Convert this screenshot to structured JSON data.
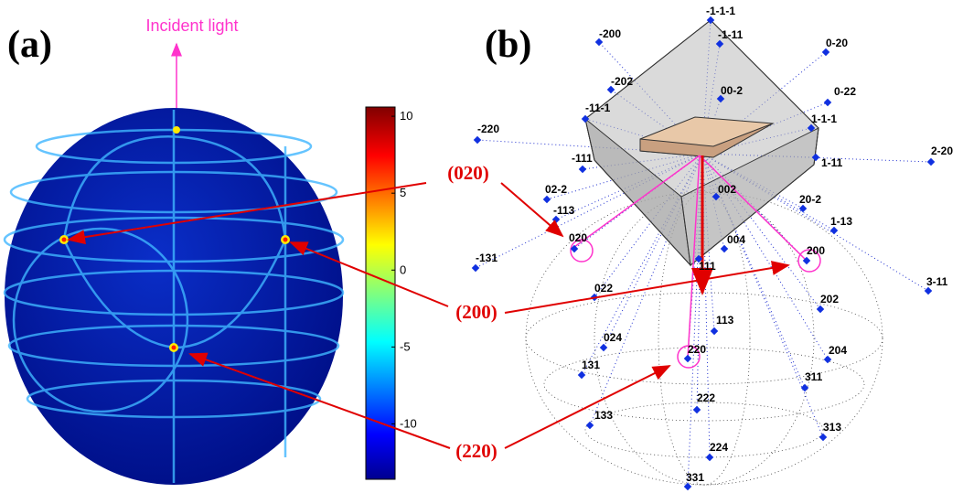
{
  "panel_a": {
    "label": "(a)",
    "incident_label": "Incident light",
    "colorbar": {
      "lim": [
        -13.6,
        10.6
      ],
      "ticks": [
        10,
        5,
        0,
        -5,
        -10
      ]
    }
  },
  "panel_b": {
    "label": "(b)",
    "poles": [
      "-200",
      "-1-1-1",
      "-1-11",
      "0-20",
      "-202",
      "00-2",
      "0-22",
      "-11-1",
      "-220",
      "1-1-1",
      "2-20",
      "-111",
      "1-11",
      "02-2",
      "002",
      "-113",
      "20-2",
      "1-13",
      "004",
      "020",
      "-131",
      "200",
      "111",
      "3-11",
      "022",
      "202",
      "113",
      "024",
      "204",
      "220",
      "131",
      "311",
      "222",
      "133",
      "313",
      "224",
      "331"
    ]
  },
  "callouts": [
    "(020)",
    "(200)",
    "(220)"
  ]
}
